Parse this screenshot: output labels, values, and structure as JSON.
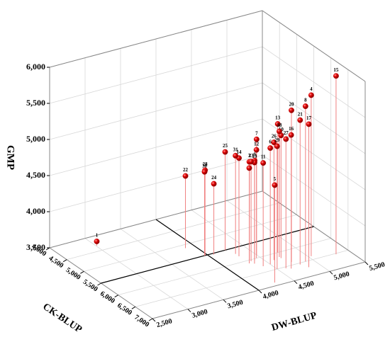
{
  "chart_data": {
    "type": "scatter3d",
    "x_label": "CK-BLUP",
    "y_label": "DW-BLUP",
    "z_label": "GMP",
    "color": "#d40000",
    "stem_color": "#f08080",
    "grid": true,
    "labels": [
      "1",
      "2",
      "3",
      "4",
      "5",
      "6",
      "7",
      "8",
      "9",
      "10",
      "11",
      "12",
      "13",
      "14",
      "15",
      "16",
      "17",
      "18",
      "19",
      "20",
      "21",
      "22",
      "23",
      "24",
      "25",
      "26",
      "27",
      "28",
      "29",
      "30",
      "31"
    ],
    "x": [
      4320,
      6100,
      6000,
      6385,
      6895,
      6300,
      5900,
      6500,
      6050,
      6200,
      6300,
      6000,
      6000,
      5800,
      6529,
      6600,
      6700,
      6150,
      6150,
      6400,
      6550,
      5116,
      6050,
      5543,
      5500,
      6200,
      6550,
      5497,
      6500,
      5500,
      5700
    ],
    "y": [
      3010,
      4300,
      4350,
      5036,
      4275,
      4500,
      4500,
      4900,
      4400,
      4700,
      4400,
      4450,
      4750,
      4300,
      5317,
      4650,
      4850,
      4700,
      4350,
      4750,
      4800,
      3876,
      4350,
      4070,
      4250,
      4600,
      4600,
      3968,
      4500,
      3960,
      4300
    ],
    "z": [
      3560,
      4820,
      4860,
      5730,
      4850,
      5110,
      5100,
      5650,
      4880,
      5200,
      4930,
      5000,
      5280,
      4860,
      5970,
      5350,
      5480,
      5240,
      4900,
      5600,
      5500,
      4500,
      4880,
      4480,
      4860,
      5130,
      5290,
      4680,
      5200,
      4660,
      4860
    ],
    "xlim": [
      4000,
      7000
    ],
    "xticks": [
      {
        "value": 4000,
        "label": "4,000"
      },
      {
        "value": 4500,
        "label": "4,500"
      },
      {
        "value": 5000,
        "label": "5,000"
      },
      {
        "value": 5500,
        "label": "5,500"
      },
      {
        "value": 6000,
        "label": "6,000"
      },
      {
        "value": 6500,
        "label": "6,500"
      },
      {
        "value": 7000,
        "label": "7,000"
      }
    ],
    "ylim": [
      2500,
      5500
    ],
    "yticks": [
      {
        "value": 2500,
        "label": "2,500"
      },
      {
        "value": 3000,
        "label": "3,000"
      },
      {
        "value": 3500,
        "label": "3,500"
      },
      {
        "value": 4000,
        "label": "4,000"
      },
      {
        "value": 4500,
        "label": "4,500"
      },
      {
        "value": 5000,
        "label": "5,000"
      },
      {
        "value": 5500,
        "label": "5,500"
      }
    ],
    "zlim": [
      3500,
      6000
    ],
    "zticks": [
      {
        "value": 3500,
        "label": "3,500"
      },
      {
        "value": 4000,
        "label": "4,000"
      },
      {
        "value": 4500,
        "label": "4,500"
      },
      {
        "value": 5000,
        "label": "5,000"
      },
      {
        "value": 5500,
        "label": "5,500"
      },
      {
        "value": 6000,
        "label": "6,000"
      }
    ]
  }
}
